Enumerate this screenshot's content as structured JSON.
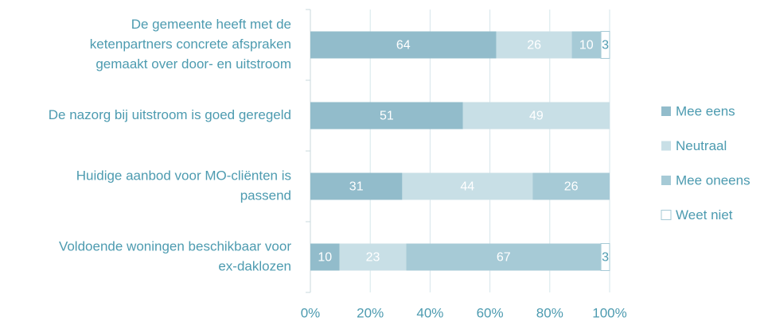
{
  "chart_data": {
    "type": "bar",
    "orientation": "horizontal",
    "stacked": "percent",
    "categories": [
      [
        "De gemeente heeft met de",
        "ketenpartners concrete afspraken",
        "gemaakt over door- en uitstroom"
      ],
      [
        "De nazorg bij uitstroom is goed geregeld"
      ],
      [
        "Huidige aanbod voor MO-cliënten is",
        "passend"
      ],
      [
        "Voldoende woningen beschikbaar voor",
        "ex-daklozen"
      ]
    ],
    "series": [
      {
        "name": "Mee eens",
        "color": "#92bccb",
        "values": [
          64,
          51,
          31,
          10
        ]
      },
      {
        "name": "Neutraal",
        "color": "#c8dfe6",
        "values": [
          26,
          49,
          44,
          23
        ]
      },
      {
        "name": "Mee oneens",
        "color": "#a6cad6",
        "values": [
          10,
          null,
          26,
          67
        ]
      },
      {
        "name": "Weet niet",
        "color": "#ffffff",
        "values": [
          3,
          null,
          null,
          3
        ]
      }
    ],
    "xlim": [
      0,
      100
    ],
    "xticks": [
      {
        "value": 0,
        "label": "0%"
      },
      {
        "value": 20,
        "label": "20%"
      },
      {
        "value": 40,
        "label": "40%"
      },
      {
        "value": 60,
        "label": "60%"
      },
      {
        "value": 80,
        "label": "80%"
      },
      {
        "value": 100,
        "label": "100%"
      }
    ],
    "grid": true,
    "legend": "right"
  }
}
